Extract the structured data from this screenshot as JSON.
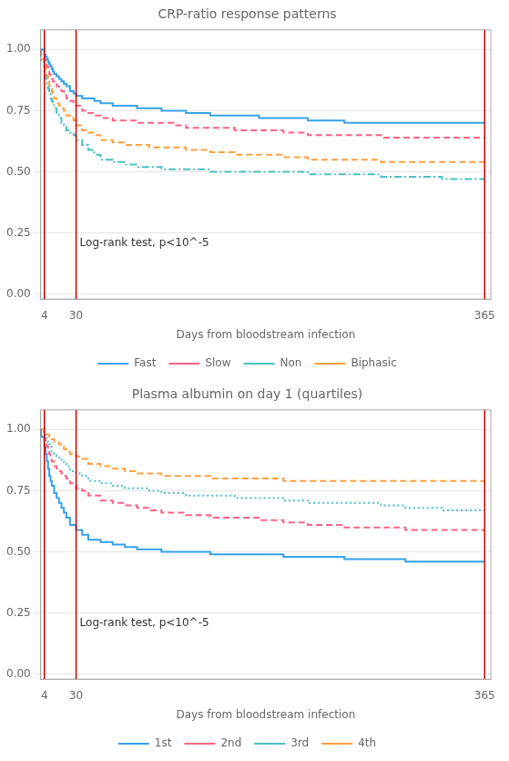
{
  "chart_data": [
    {
      "type": "step",
      "title": "CRP-ratio response patterns",
      "x_label": "Days from bloodstream infection",
      "xlim": [
        1,
        370
      ],
      "xticks": [
        4,
        30,
        365
      ],
      "ylim": [
        -0.02,
        1.08
      ],
      "yticks": [
        {
          "value": 0.0,
          "label": "0.00"
        },
        0.25,
        {
          "value": 0.5,
          "label": "0.50"
        },
        0.75,
        {
          "value": 1.0,
          "label": "1.00"
        }
      ],
      "grid": "y",
      "legend": "bottom",
      "vlines": {
        "values": [
          4,
          30,
          365
        ],
        "color": "#cc0000"
      },
      "annotations": [
        {
          "text": "Log-rank test, p<10^-5",
          "x": 33,
          "y": 0.21
        }
      ],
      "series": [
        {
          "name": "Fast",
          "line_style": "solid",
          "x": [
            1,
            4,
            5,
            6,
            7,
            8,
            9,
            10,
            11,
            12,
            14,
            16,
            18,
            20,
            22,
            25,
            28,
            30,
            35,
            40,
            45,
            50,
            60,
            70,
            80,
            90,
            100,
            110,
            120,
            140,
            160,
            180,
            200,
            220,
            250,
            280,
            300,
            330,
            365
          ],
          "values": [
            1.0,
            1.0,
            0.98,
            0.97,
            0.96,
            0.95,
            0.94,
            0.93,
            0.92,
            0.91,
            0.9,
            0.89,
            0.88,
            0.87,
            0.86,
            0.85,
            0.83,
            0.82,
            0.81,
            0.8,
            0.8,
            0.79,
            0.78,
            0.77,
            0.77,
            0.76,
            0.76,
            0.75,
            0.75,
            0.74,
            0.73,
            0.73,
            0.72,
            0.72,
            0.71,
            0.7,
            0.7,
            0.7,
            0.7
          ]
        },
        {
          "name": "Slow",
          "line_style": "dashed",
          "x": [
            1,
            4,
            5,
            6,
            7,
            8,
            9,
            10,
            11,
            12,
            14,
            16,
            18,
            20,
            22,
            25,
            28,
            30,
            35,
            40,
            45,
            50,
            60,
            70,
            80,
            90,
            100,
            110,
            120,
            140,
            160,
            180,
            200,
            220,
            250,
            280,
            300,
            330,
            365
          ],
          "values": [
            1.0,
            0.98,
            0.96,
            0.94,
            0.93,
            0.91,
            0.9,
            0.89,
            0.88,
            0.87,
            0.86,
            0.85,
            0.84,
            0.83,
            0.82,
            0.8,
            0.79,
            0.78,
            0.77,
            0.75,
            0.74,
            0.73,
            0.72,
            0.71,
            0.71,
            0.7,
            0.7,
            0.7,
            0.69,
            0.68,
            0.68,
            0.67,
            0.67,
            0.66,
            0.65,
            0.65,
            0.64,
            0.64,
            0.64
          ]
        },
        {
          "name": "Non",
          "line_style": "dashdot",
          "x": [
            1,
            4,
            5,
            6,
            7,
            8,
            9,
            10,
            11,
            12,
            14,
            16,
            18,
            20,
            22,
            25,
            28,
            30,
            35,
            40,
            45,
            50,
            60,
            70,
            80,
            90,
            100,
            110,
            120,
            140,
            160,
            180,
            200,
            220,
            250,
            280,
            300,
            330,
            365
          ],
          "values": [
            1.0,
            0.95,
            0.91,
            0.88,
            0.86,
            0.84,
            0.82,
            0.8,
            0.79,
            0.78,
            0.76,
            0.74,
            0.72,
            0.7,
            0.69,
            0.67,
            0.66,
            0.65,
            0.63,
            0.61,
            0.59,
            0.57,
            0.55,
            0.54,
            0.53,
            0.52,
            0.52,
            0.51,
            0.51,
            0.51,
            0.5,
            0.5,
            0.5,
            0.5,
            0.49,
            0.49,
            0.48,
            0.48,
            0.47
          ]
        },
        {
          "name": "Biphasic",
          "line_style": "dashed",
          "x": [
            1,
            4,
            5,
            6,
            7,
            8,
            9,
            10,
            11,
            12,
            14,
            16,
            18,
            20,
            22,
            25,
            28,
            30,
            35,
            40,
            45,
            50,
            60,
            70,
            80,
            90,
            100,
            110,
            120,
            140,
            160,
            180,
            200,
            220,
            250,
            280,
            300,
            330,
            365
          ],
          "values": [
            1.0,
            0.96,
            0.93,
            0.91,
            0.89,
            0.87,
            0.85,
            0.84,
            0.83,
            0.82,
            0.8,
            0.78,
            0.77,
            0.76,
            0.75,
            0.73,
            0.72,
            0.71,
            0.69,
            0.67,
            0.66,
            0.65,
            0.63,
            0.62,
            0.61,
            0.61,
            0.6,
            0.6,
            0.6,
            0.59,
            0.58,
            0.57,
            0.57,
            0.56,
            0.55,
            0.55,
            0.54,
            0.54,
            0.54
          ]
        }
      ]
    },
    {
      "type": "step",
      "title": "Plasma albumin on day 1 (quartiles)",
      "x_label": "Days from bloodstream infection",
      "xlim": [
        1,
        370
      ],
      "xticks": [
        4,
        30,
        365
      ],
      "ylim": [
        -0.02,
        1.08
      ],
      "yticks": [
        {
          "value": 0.0,
          "label": "0.00"
        },
        0.25,
        {
          "value": 0.5,
          "label": "0.50"
        },
        0.75,
        {
          "value": 1.0,
          "label": "1.00"
        }
      ],
      "grid": "y",
      "legend": "bottom",
      "vlines": {
        "values": [
          4,
          30,
          365
        ],
        "color": "#cc0000"
      },
      "annotations": [
        {
          "text": "Log-rank test, p<10^-5",
          "x": 33,
          "y": 0.21
        }
      ],
      "series": [
        {
          "name": "1st",
          "line_style": "solid",
          "x": [
            1,
            4,
            5,
            6,
            7,
            8,
            9,
            10,
            12,
            14,
            16,
            18,
            20,
            22,
            25,
            30,
            35,
            40,
            50,
            60,
            70,
            80,
            90,
            100,
            120,
            140,
            160,
            180,
            200,
            220,
            250,
            280,
            300,
            330,
            365
          ],
          "values": [
            1.0,
            0.97,
            0.93,
            0.9,
            0.87,
            0.84,
            0.81,
            0.79,
            0.77,
            0.74,
            0.72,
            0.7,
            0.68,
            0.66,
            0.64,
            0.61,
            0.59,
            0.57,
            0.55,
            0.54,
            0.53,
            0.52,
            0.51,
            0.51,
            0.5,
            0.5,
            0.49,
            0.49,
            0.49,
            0.48,
            0.48,
            0.47,
            0.47,
            0.46,
            0.46
          ]
        },
        {
          "name": "2nd",
          "line_style": "dashed",
          "x": [
            1,
            4,
            5,
            6,
            7,
            8,
            9,
            10,
            12,
            14,
            16,
            18,
            20,
            22,
            25,
            30,
            35,
            40,
            50,
            60,
            70,
            80,
            90,
            100,
            120,
            140,
            160,
            180,
            200,
            220,
            250,
            280,
            300,
            330,
            365
          ],
          "values": [
            1.0,
            0.98,
            0.96,
            0.94,
            0.93,
            0.91,
            0.9,
            0.89,
            0.87,
            0.85,
            0.84,
            0.83,
            0.82,
            0.81,
            0.8,
            0.78,
            0.76,
            0.75,
            0.73,
            0.71,
            0.7,
            0.69,
            0.68,
            0.67,
            0.66,
            0.65,
            0.64,
            0.64,
            0.63,
            0.62,
            0.61,
            0.6,
            0.6,
            0.59,
            0.59
          ]
        },
        {
          "name": "3rd",
          "line_style": "dotted",
          "x": [
            1,
            4,
            5,
            6,
            7,
            8,
            9,
            10,
            12,
            14,
            16,
            18,
            20,
            22,
            25,
            30,
            35,
            40,
            50,
            60,
            70,
            80,
            90,
            100,
            120,
            140,
            160,
            180,
            200,
            220,
            250,
            280,
            300,
            330,
            365
          ],
          "values": [
            1.0,
            0.99,
            0.98,
            0.97,
            0.96,
            0.95,
            0.94,
            0.93,
            0.91,
            0.9,
            0.89,
            0.88,
            0.87,
            0.86,
            0.85,
            0.83,
            0.82,
            0.81,
            0.79,
            0.78,
            0.77,
            0.76,
            0.76,
            0.75,
            0.74,
            0.73,
            0.73,
            0.72,
            0.72,
            0.71,
            0.7,
            0.7,
            0.69,
            0.68,
            0.67
          ]
        },
        {
          "name": "4th",
          "line_style": "dashed",
          "x": [
            1,
            4,
            5,
            6,
            7,
            8,
            9,
            10,
            12,
            14,
            16,
            18,
            20,
            22,
            25,
            30,
            35,
            40,
            50,
            60,
            70,
            80,
            90,
            100,
            120,
            140,
            160,
            180,
            200,
            220,
            250,
            280,
            300,
            330,
            365
          ],
          "values": [
            1.0,
            1.0,
            0.99,
            0.99,
            0.98,
            0.98,
            0.97,
            0.97,
            0.96,
            0.95,
            0.95,
            0.94,
            0.93,
            0.92,
            0.91,
            0.9,
            0.89,
            0.88,
            0.86,
            0.85,
            0.84,
            0.83,
            0.82,
            0.82,
            0.81,
            0.81,
            0.8,
            0.8,
            0.8,
            0.79,
            0.79,
            0.79,
            0.79,
            0.79,
            0.79
          ]
        }
      ]
    }
  ]
}
